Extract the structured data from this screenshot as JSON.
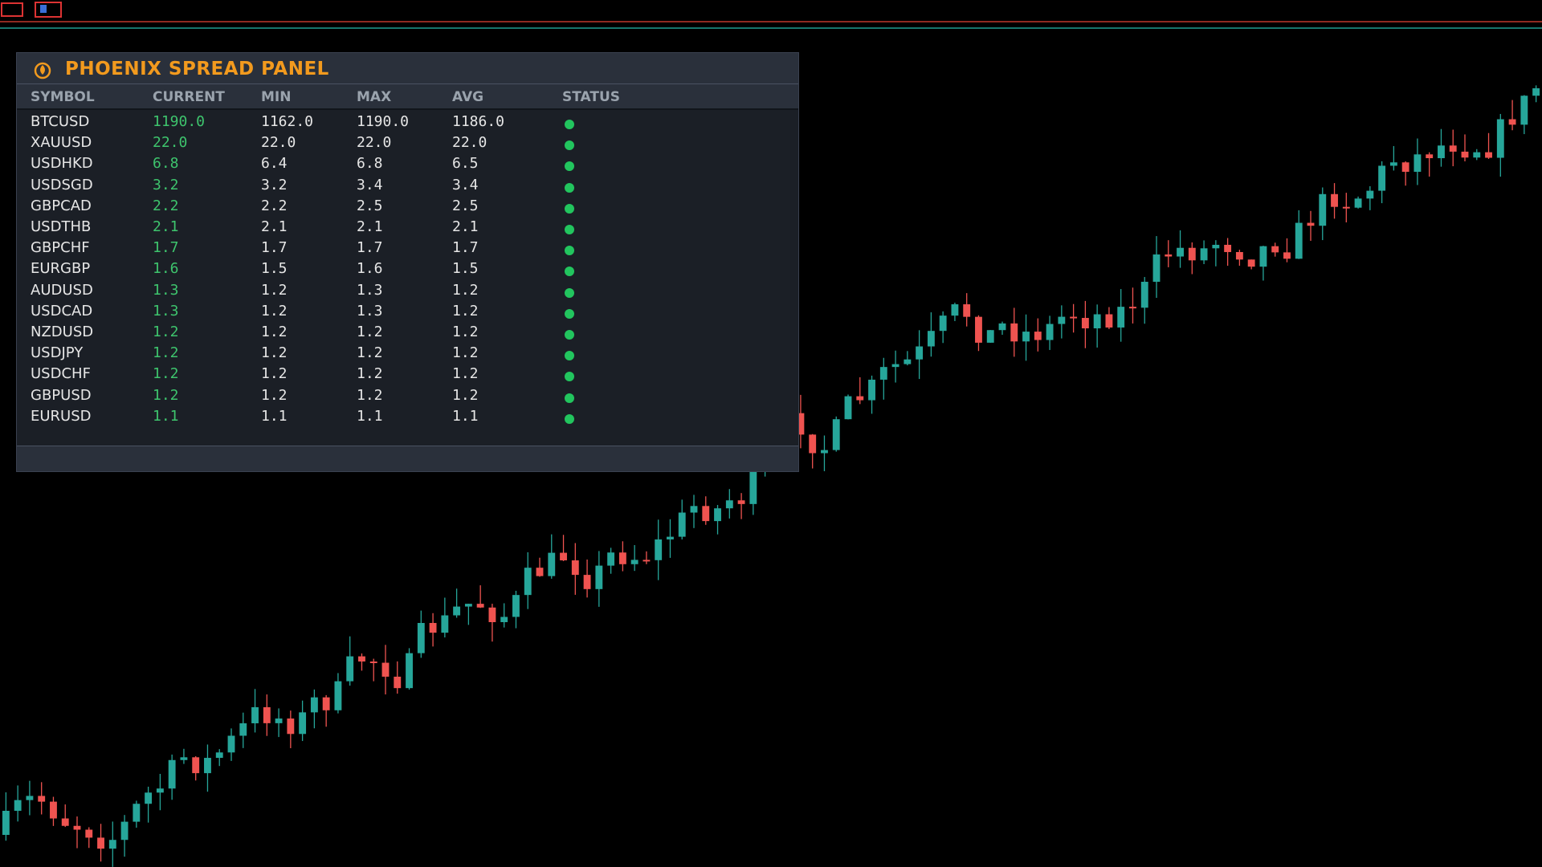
{
  "panel": {
    "title": "PHOENIX SPREAD PANEL",
    "columns": [
      "SYMBOL",
      "CURRENT",
      "MIN",
      "MAX",
      "AVG",
      "STATUS"
    ],
    "rows": [
      [
        "BTCUSD",
        "1190.0",
        "1162.0",
        "1190.0",
        "1186.0"
      ],
      [
        "XAUUSD",
        "22.0",
        "22.0",
        "22.0",
        "22.0"
      ],
      [
        "USDHKD",
        "6.8",
        "6.4",
        "6.8",
        "6.5"
      ],
      [
        "USDSGD",
        "3.2",
        "3.2",
        "3.4",
        "3.4"
      ],
      [
        "GBPCAD",
        "2.2",
        "2.2",
        "2.5",
        "2.5"
      ],
      [
        "USDTHB",
        "2.1",
        "2.1",
        "2.1",
        "2.1"
      ],
      [
        "GBPCHF",
        "1.7",
        "1.7",
        "1.7",
        "1.7"
      ],
      [
        "EURGBP",
        "1.6",
        "1.5",
        "1.6",
        "1.5"
      ],
      [
        "AUDUSD",
        "1.3",
        "1.2",
        "1.3",
        "1.2"
      ],
      [
        "USDCAD",
        "1.3",
        "1.2",
        "1.3",
        "1.2"
      ],
      [
        "NZDUSD",
        "1.2",
        "1.2",
        "1.2",
        "1.2"
      ],
      [
        "USDJPY",
        "1.2",
        "1.2",
        "1.2",
        "1.2"
      ],
      [
        "USDCHF",
        "1.2",
        "1.2",
        "1.2",
        "1.2"
      ],
      [
        "GBPUSD",
        "1.2",
        "1.2",
        "1.2",
        "1.2"
      ],
      [
        "EURUSD",
        "1.1",
        "1.1",
        "1.1",
        "1.1"
      ]
    ]
  }
}
